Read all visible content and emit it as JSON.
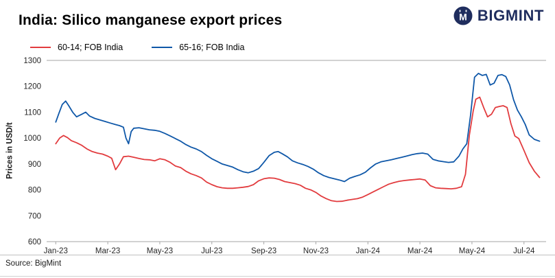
{
  "header": {
    "title": "India: Silico manganese export prices",
    "brand": {
      "name": "BIGMINT",
      "icon": "bigmint-circle-m-icon",
      "color": "#1f2d5e"
    }
  },
  "footer": {
    "source": "Source: BigMint"
  },
  "chart_data": {
    "type": "line",
    "title": "India: Silico manganese export prices",
    "xlabel": "",
    "ylabel": "Prices in USD/t",
    "ylim": [
      600,
      1300
    ],
    "xlim": [
      -0.35,
      18.85
    ],
    "y_ticks": [
      600,
      700,
      800,
      900,
      1000,
      1100,
      1200,
      1300
    ],
    "x_tick_labels": [
      "Jan-23",
      "Mar-23",
      "May-23",
      "Jul-23",
      "Sep-23",
      "Nov-23",
      "Jan-24",
      "Mar-24",
      "May-24",
      "Jul-24"
    ],
    "x_tick_positions": [
      0,
      2,
      4,
      6,
      8,
      10,
      12,
      14,
      16,
      18
    ],
    "grid": false,
    "legend_position": "top-left",
    "axis_color": "#a6a6a6",
    "tick_label_color": "#262626",
    "series": [
      {
        "name": "60-14; FOB India",
        "color": "#e23b3e",
        "x": [
          0,
          0.15,
          0.3,
          0.45,
          0.6,
          0.8,
          1.0,
          1.2,
          1.4,
          1.6,
          1.8,
          2.0,
          2.15,
          2.3,
          2.45,
          2.6,
          2.8,
          3.0,
          3.2,
          3.4,
          3.6,
          3.8,
          4.0,
          4.2,
          4.4,
          4.6,
          4.8,
          5.0,
          5.2,
          5.4,
          5.6,
          5.8,
          6.0,
          6.2,
          6.4,
          6.6,
          6.8,
          7.0,
          7.2,
          7.4,
          7.6,
          7.8,
          8.0,
          8.2,
          8.4,
          8.6,
          8.8,
          9.0,
          9.2,
          9.4,
          9.6,
          9.8,
          10.0,
          10.2,
          10.4,
          10.6,
          10.8,
          11.0,
          11.2,
          11.4,
          11.6,
          11.8,
          12.0,
          12.2,
          12.4,
          12.6,
          12.8,
          13.0,
          13.2,
          13.4,
          13.6,
          13.8,
          14.0,
          14.2,
          14.4,
          14.6,
          14.8,
          15.0,
          15.2,
          15.4,
          15.6,
          15.75,
          15.9,
          16.05,
          16.15,
          16.3,
          16.45,
          16.6,
          16.75,
          16.9,
          17.05,
          17.2,
          17.35,
          17.5,
          17.65,
          17.8,
          18.0,
          18.2,
          18.4,
          18.6
        ],
        "values": [
          978,
          1000,
          1010,
          1002,
          990,
          982,
          972,
          958,
          948,
          942,
          938,
          930,
          922,
          878,
          900,
          928,
          930,
          926,
          921,
          917,
          916,
          912,
          920,
          916,
          906,
          892,
          886,
          872,
          862,
          855,
          846,
          830,
          820,
          812,
          808,
          806,
          806,
          808,
          810,
          813,
          820,
          835,
          843,
          846,
          845,
          840,
          832,
          828,
          824,
          818,
          806,
          800,
          790,
          776,
          766,
          758,
          755,
          756,
          760,
          763,
          766,
          772,
          782,
          792,
          802,
          812,
          822,
          828,
          833,
          836,
          838,
          840,
          842,
          838,
          816,
          808,
          806,
          805,
          804,
          806,
          812,
          860,
          1010,
          1105,
          1150,
          1158,
          1118,
          1082,
          1092,
          1118,
          1122,
          1125,
          1118,
          1055,
          1008,
          998,
          952,
          905,
          872,
          848
        ]
      },
      {
        "name": "65-16; FOB India",
        "color": "#0e57a8",
        "x": [
          0,
          0.12,
          0.25,
          0.38,
          0.5,
          0.65,
          0.8,
          1.0,
          1.15,
          1.3,
          1.5,
          1.7,
          1.9,
          2.1,
          2.3,
          2.45,
          2.6,
          2.7,
          2.8,
          2.9,
          3.0,
          3.2,
          3.4,
          3.6,
          3.8,
          4.0,
          4.2,
          4.4,
          4.6,
          4.8,
          5.0,
          5.2,
          5.4,
          5.6,
          5.8,
          6.0,
          6.2,
          6.4,
          6.6,
          6.8,
          7.0,
          7.2,
          7.4,
          7.6,
          7.8,
          8.0,
          8.2,
          8.4,
          8.55,
          8.7,
          8.9,
          9.1,
          9.3,
          9.5,
          9.7,
          9.9,
          10.1,
          10.3,
          10.5,
          10.7,
          10.9,
          11.1,
          11.3,
          11.5,
          11.7,
          11.9,
          12.1,
          12.3,
          12.5,
          12.7,
          12.9,
          13.1,
          13.3,
          13.5,
          13.7,
          13.9,
          14.1,
          14.3,
          14.5,
          14.7,
          14.9,
          15.1,
          15.3,
          15.5,
          15.65,
          15.8,
          15.95,
          16.1,
          16.25,
          16.4,
          16.55,
          16.7,
          16.85,
          17.0,
          17.15,
          17.3,
          17.45,
          17.6,
          17.75,
          17.9,
          18.05,
          18.2,
          18.4,
          18.6
        ],
        "values": [
          1062,
          1095,
          1130,
          1143,
          1125,
          1100,
          1082,
          1092,
          1100,
          1085,
          1076,
          1070,
          1064,
          1058,
          1052,
          1048,
          1042,
          1000,
          978,
          1025,
          1038,
          1040,
          1036,
          1032,
          1030,
          1026,
          1018,
          1008,
          998,
          988,
          975,
          965,
          958,
          948,
          933,
          920,
          910,
          900,
          894,
          888,
          878,
          870,
          866,
          872,
          882,
          906,
          932,
          945,
          948,
          940,
          928,
          912,
          904,
          898,
          890,
          880,
          866,
          855,
          848,
          843,
          838,
          832,
          845,
          852,
          858,
          868,
          885,
          900,
          908,
          912,
          916,
          921,
          926,
          931,
          936,
          940,
          942,
          938,
          918,
          912,
          909,
          906,
          908,
          930,
          958,
          978,
          1090,
          1235,
          1250,
          1242,
          1246,
          1205,
          1212,
          1242,
          1245,
          1238,
          1205,
          1148,
          1108,
          1082,
          1052,
          1012,
          995,
          988
        ]
      }
    ]
  }
}
